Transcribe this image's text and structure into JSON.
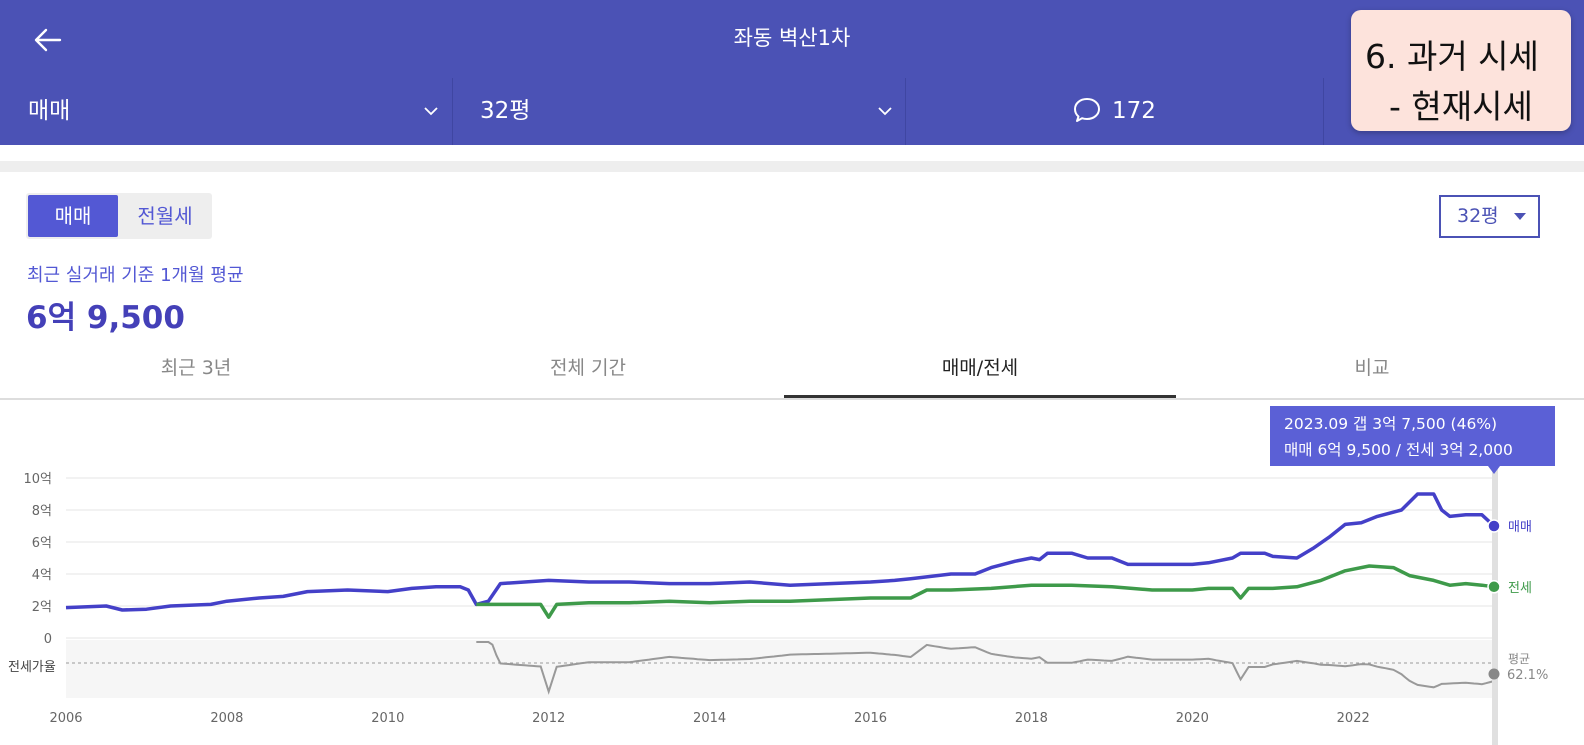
{
  "header": {
    "title": "좌동 벽산1차",
    "back_icon": "arrow-left-icon"
  },
  "filters": {
    "deal_type": "매매",
    "size": "32평",
    "comment_count": "172"
  },
  "note": {
    "line1": "6. 과거 시세",
    "line2": "- 현재시세"
  },
  "toggle": {
    "active": "매매",
    "inactive": "전월세"
  },
  "size_select": "32평",
  "summary": {
    "subtitle": "최근 실거래 기준 1개월 평균",
    "price": "6억 9,500"
  },
  "tabs": [
    {
      "label": "최근 3년"
    },
    {
      "label": "전체 기간"
    },
    {
      "label": "매매/전세",
      "active": true
    },
    {
      "label": "비교"
    }
  ],
  "tooltip": {
    "line1": "2023.09  갭 3억 7,500 (46%)",
    "line2": "매매 6억 9,500 / 전세 3억 2,000"
  },
  "colors": {
    "header_bg": "#4b52b5",
    "sale": "#4440c8",
    "jeonse": "#3e9a4a",
    "ratio": "#999999",
    "accent": "#5358d4"
  },
  "chart_data": {
    "type": "line",
    "x_ticks": [
      "2006",
      "2008",
      "2010",
      "2012",
      "2014",
      "2016",
      "2018",
      "2020",
      "2022"
    ],
    "y_ticks": [
      "10억",
      "8억",
      "6억",
      "4억",
      "2억",
      "0"
    ],
    "ylim": [
      0,
      10
    ],
    "xlim": [
      2006.0,
      2023.75
    ],
    "ratio_label": "전세가율",
    "ratio_avg_label": "평균",
    "ratio_avg_value": "62.1%",
    "series": [
      {
        "name": "매매",
        "unit": "억",
        "points": [
          [
            2006.0,
            1.9
          ],
          [
            2006.5,
            2.0
          ],
          [
            2006.7,
            1.75
          ],
          [
            2007.0,
            1.8
          ],
          [
            2007.3,
            2.0
          ],
          [
            2007.8,
            2.1
          ],
          [
            2008.0,
            2.3
          ],
          [
            2008.4,
            2.5
          ],
          [
            2008.7,
            2.6
          ],
          [
            2009.0,
            2.9
          ],
          [
            2009.5,
            3.0
          ],
          [
            2010.0,
            2.9
          ],
          [
            2010.3,
            3.1
          ],
          [
            2010.6,
            3.2
          ],
          [
            2010.9,
            3.2
          ],
          [
            2011.0,
            3.0
          ],
          [
            2011.1,
            2.1
          ],
          [
            2011.25,
            2.3
          ],
          [
            2011.4,
            3.4
          ],
          [
            2011.7,
            3.5
          ],
          [
            2012.0,
            3.6
          ],
          [
            2012.5,
            3.5
          ],
          [
            2013.0,
            3.5
          ],
          [
            2013.5,
            3.4
          ],
          [
            2014.0,
            3.4
          ],
          [
            2014.5,
            3.5
          ],
          [
            2015.0,
            3.3
          ],
          [
            2015.5,
            3.4
          ],
          [
            2016.0,
            3.5
          ],
          [
            2016.3,
            3.6
          ],
          [
            2016.5,
            3.7
          ],
          [
            2017.0,
            4.0
          ],
          [
            2017.3,
            4.0
          ],
          [
            2017.5,
            4.4
          ],
          [
            2017.8,
            4.8
          ],
          [
            2018.0,
            5.0
          ],
          [
            2018.1,
            4.9
          ],
          [
            2018.2,
            5.3
          ],
          [
            2018.5,
            5.3
          ],
          [
            2018.7,
            5.0
          ],
          [
            2019.0,
            5.0
          ],
          [
            2019.2,
            4.6
          ],
          [
            2019.5,
            4.6
          ],
          [
            2020.0,
            4.6
          ],
          [
            2020.2,
            4.7
          ],
          [
            2020.5,
            5.0
          ],
          [
            2020.6,
            5.3
          ],
          [
            2020.9,
            5.3
          ],
          [
            2021.0,
            5.1
          ],
          [
            2021.3,
            5.0
          ],
          [
            2021.5,
            5.6
          ],
          [
            2021.7,
            6.3
          ],
          [
            2021.9,
            7.1
          ],
          [
            2022.1,
            7.2
          ],
          [
            2022.3,
            7.6
          ],
          [
            2022.6,
            8.0
          ],
          [
            2022.8,
            9.0
          ],
          [
            2023.0,
            9.0
          ],
          [
            2023.1,
            8.0
          ],
          [
            2023.2,
            7.6
          ],
          [
            2023.4,
            7.7
          ],
          [
            2023.6,
            7.7
          ],
          [
            2023.75,
            7.0
          ]
        ]
      },
      {
        "name": "전세",
        "unit": "억",
        "points": [
          [
            2011.1,
            2.1
          ],
          [
            2011.5,
            2.1
          ],
          [
            2011.9,
            2.1
          ],
          [
            2012.0,
            1.3
          ],
          [
            2012.1,
            2.1
          ],
          [
            2012.5,
            2.2
          ],
          [
            2013.0,
            2.2
          ],
          [
            2013.5,
            2.3
          ],
          [
            2014.0,
            2.2
          ],
          [
            2014.5,
            2.3
          ],
          [
            2015.0,
            2.3
          ],
          [
            2015.5,
            2.4
          ],
          [
            2016.0,
            2.5
          ],
          [
            2016.5,
            2.5
          ],
          [
            2016.7,
            3.0
          ],
          [
            2017.0,
            3.0
          ],
          [
            2017.5,
            3.1
          ],
          [
            2018.0,
            3.3
          ],
          [
            2018.5,
            3.3
          ],
          [
            2019.0,
            3.2
          ],
          [
            2019.5,
            3.0
          ],
          [
            2020.0,
            3.0
          ],
          [
            2020.2,
            3.1
          ],
          [
            2020.5,
            3.1
          ],
          [
            2020.6,
            2.5
          ],
          [
            2020.7,
            3.1
          ],
          [
            2021.0,
            3.1
          ],
          [
            2021.3,
            3.2
          ],
          [
            2021.6,
            3.6
          ],
          [
            2021.9,
            4.2
          ],
          [
            2022.2,
            4.5
          ],
          [
            2022.5,
            4.4
          ],
          [
            2022.7,
            3.9
          ],
          [
            2023.0,
            3.6
          ],
          [
            2023.2,
            3.3
          ],
          [
            2023.4,
            3.4
          ],
          [
            2023.6,
            3.3
          ],
          [
            2023.75,
            3.2
          ]
        ]
      }
    ]
  }
}
